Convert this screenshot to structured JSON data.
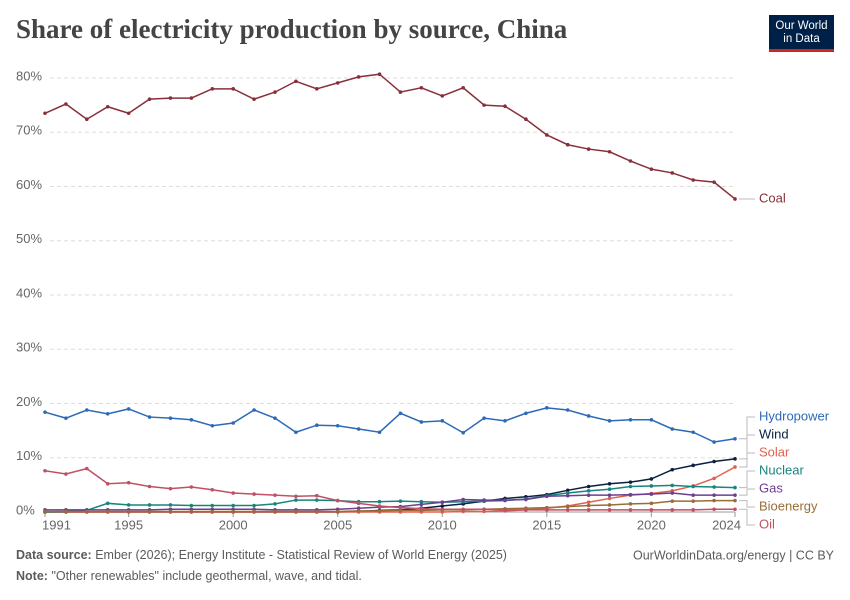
{
  "chart_data": {
    "type": "line",
    "title": "Share of electricity production by source, China",
    "logo": [
      "Our World",
      "in Data"
    ],
    "source_label": "Data source:",
    "source": "Ember (2026); Energy Institute - Statistical Review of World Energy (2025)",
    "url": "OurWorldinData.org/energy | CC BY",
    "note_label": "Note:",
    "note": "\"Other renewables\" include geothermal, wave, and tidal.",
    "x": [
      1991,
      1992,
      1993,
      1994,
      1995,
      1996,
      1997,
      1998,
      1999,
      2000,
      2001,
      2002,
      2003,
      2004,
      2005,
      2006,
      2007,
      2008,
      2009,
      2010,
      2011,
      2012,
      2013,
      2014,
      2015,
      2016,
      2017,
      2018,
      2019,
      2020,
      2021,
      2022,
      2023,
      2024
    ],
    "xlim": [
      1991,
      2024
    ],
    "xticks": [
      1991,
      1995,
      2000,
      2005,
      2010,
      2015,
      2020,
      2024
    ],
    "ylim": [
      0,
      80
    ],
    "yticks": [
      {
        "value": 0,
        "label": "0%"
      },
      {
        "value": 10,
        "label": "10%"
      },
      {
        "value": 20,
        "label": "20%"
      },
      {
        "value": 30,
        "label": "30%"
      },
      {
        "value": 40,
        "label": "40%"
      },
      {
        "value": 50,
        "label": "50%"
      },
      {
        "value": 60,
        "label": "60%"
      },
      {
        "value": 70,
        "label": "70%"
      },
      {
        "value": 80,
        "label": "80%"
      }
    ],
    "grid": true,
    "series": [
      {
        "name": "Coal",
        "color": "#883039",
        "values": [
          73.5,
          75.2,
          72.4,
          74.7,
          73.5,
          76.1,
          76.3,
          76.3,
          78.0,
          78.0,
          76.1,
          77.4,
          79.4,
          78.0,
          79.1,
          80.2,
          80.7,
          77.4,
          78.2,
          76.7,
          78.2,
          75.0,
          74.8,
          72.4,
          69.5,
          67.7,
          66.9,
          66.4,
          64.7,
          63.2,
          62.5,
          61.2,
          60.8,
          57.7
        ]
      },
      {
        "name": "Hydropower",
        "color": "#2c6ab8",
        "values": [
          18.4,
          17.3,
          18.8,
          18.1,
          19.0,
          17.5,
          17.3,
          17.0,
          15.9,
          16.4,
          18.8,
          17.3,
          14.7,
          16.0,
          15.9,
          15.3,
          14.7,
          18.2,
          16.6,
          16.8,
          14.6,
          17.3,
          16.8,
          18.2,
          19.2,
          18.8,
          17.7,
          16.8,
          17.0,
          17.0,
          15.3,
          14.7,
          12.9,
          13.5
        ]
      },
      {
        "name": "Wind",
        "color": "#0b1f3f",
        "values": [
          0,
          0,
          0,
          0,
          0,
          0,
          0,
          0,
          0,
          0,
          0,
          0,
          0,
          0,
          0,
          0.1,
          0.3,
          0.4,
          0.7,
          1.1,
          1.5,
          2.0,
          2.5,
          2.8,
          3.2,
          4.0,
          4.7,
          5.2,
          5.5,
          6.1,
          7.8,
          8.6,
          9.3,
          9.8
        ]
      },
      {
        "name": "Solar",
        "color": "#e0614f",
        "values": [
          0,
          0,
          0,
          0,
          0,
          0,
          0,
          0,
          0,
          0,
          0,
          0,
          0,
          0,
          0,
          0,
          0,
          0,
          0,
          0,
          0.1,
          0.1,
          0.2,
          0.4,
          0.7,
          1.1,
          1.8,
          2.5,
          3.1,
          3.4,
          3.9,
          4.8,
          6.2,
          8.3
        ]
      },
      {
        "name": "Nuclear",
        "color": "#18847e",
        "values": [
          0.0,
          0.1,
          0.3,
          1.6,
          1.3,
          1.3,
          1.3,
          1.2,
          1.2,
          1.2,
          1.2,
          1.5,
          2.2,
          2.2,
          2.1,
          1.9,
          1.9,
          2.0,
          1.9,
          1.8,
          1.9,
          2.0,
          2.1,
          2.4,
          3.0,
          3.5,
          3.9,
          4.2,
          4.7,
          4.8,
          4.9,
          4.7,
          4.6,
          4.5
        ]
      },
      {
        "name": "Gas",
        "color": "#6d3e91",
        "values": [
          0.4,
          0.4,
          0.4,
          0.4,
          0.4,
          0.4,
          0.5,
          0.5,
          0.5,
          0.5,
          0.5,
          0.4,
          0.4,
          0.4,
          0.5,
          0.7,
          0.9,
          1.0,
          1.4,
          1.8,
          2.3,
          2.2,
          2.2,
          2.3,
          2.9,
          3.0,
          3.1,
          3.1,
          3.2,
          3.3,
          3.5,
          3.1,
          3.1,
          3.1
        ]
      },
      {
        "name": "Bioenergy",
        "color": "#996d39",
        "values": [
          0.1,
          0.1,
          0.1,
          0.1,
          0.1,
          0.1,
          0.1,
          0.1,
          0.1,
          0.1,
          0.1,
          0.1,
          0.1,
          0.1,
          0.1,
          0.2,
          0.2,
          0.3,
          0.3,
          0.4,
          0.4,
          0.5,
          0.6,
          0.7,
          0.8,
          1.0,
          1.2,
          1.3,
          1.5,
          1.6,
          2.0,
          2.0,
          2.1,
          2.1
        ]
      },
      {
        "name": "Oil",
        "color": "#c15065",
        "values": [
          7.6,
          7.0,
          8.0,
          5.2,
          5.4,
          4.7,
          4.3,
          4.6,
          4.1,
          3.5,
          3.3,
          3.1,
          2.9,
          3.0,
          2.1,
          1.6,
          1.1,
          0.8,
          0.6,
          0.5,
          0.5,
          0.5,
          0.4,
          0.4,
          0.4,
          0.4,
          0.4,
          0.4,
          0.4,
          0.4,
          0.4,
          0.4,
          0.5,
          0.5
        ]
      }
    ]
  }
}
